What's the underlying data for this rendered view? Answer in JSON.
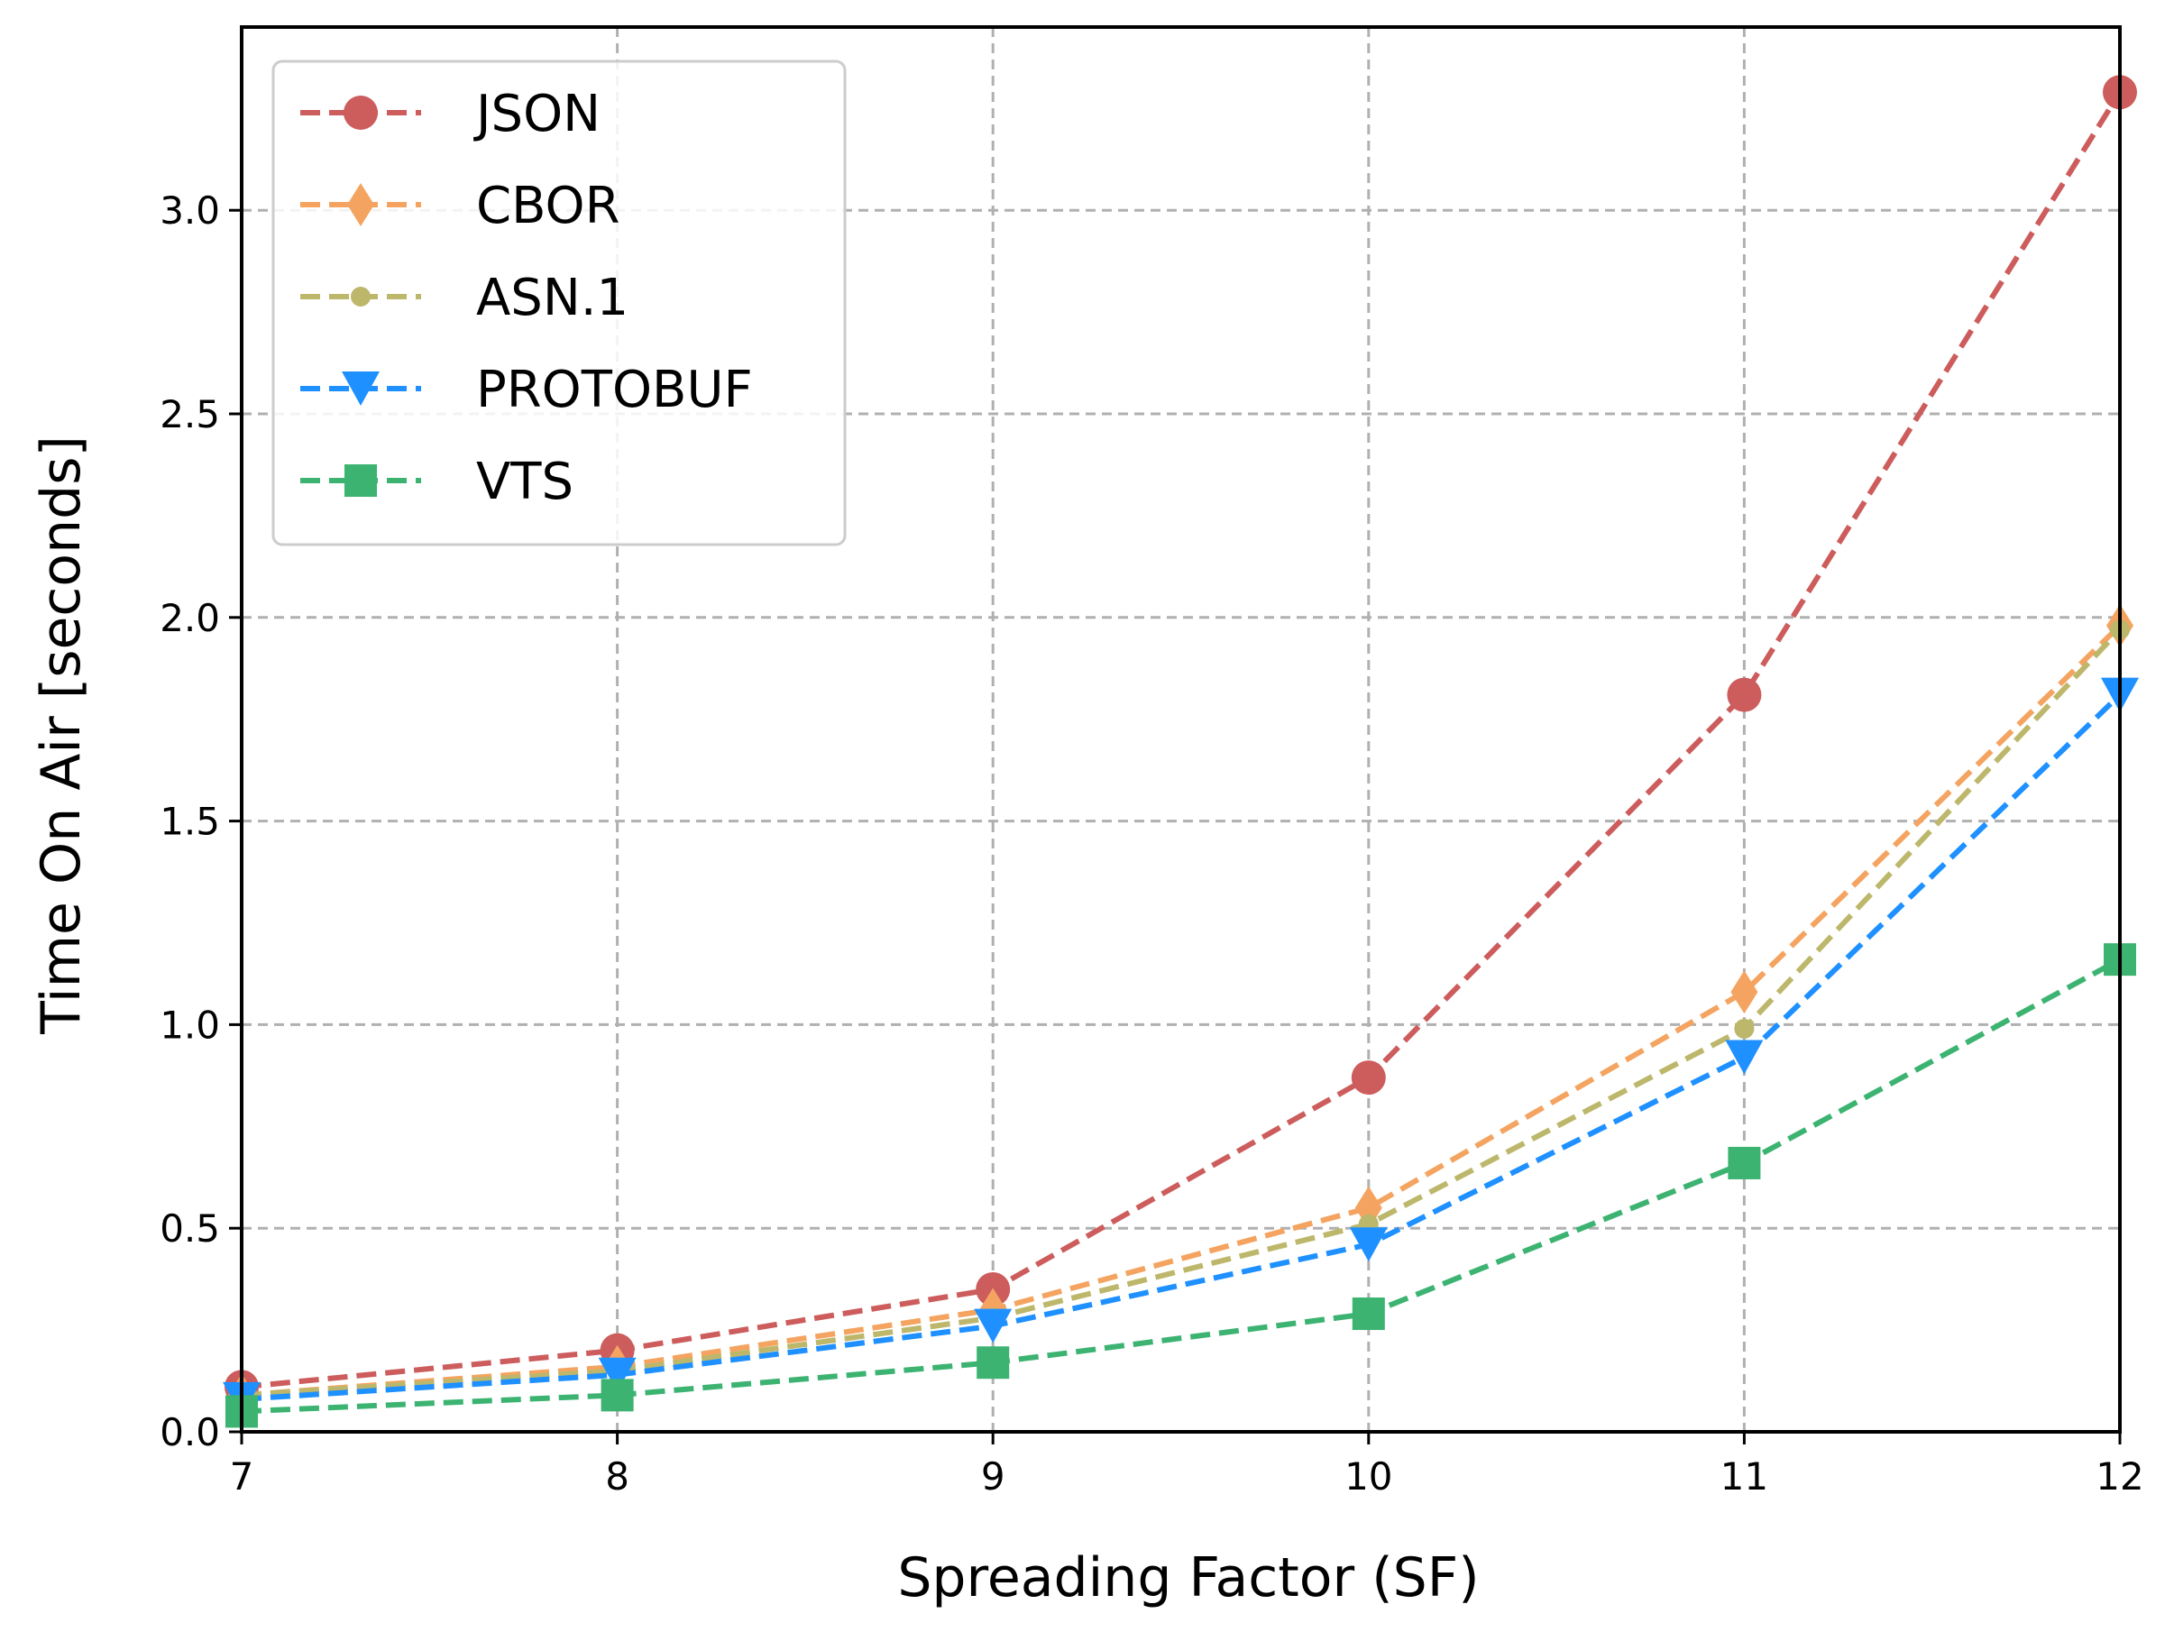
{
  "chart_data": {
    "type": "line",
    "title": "",
    "xlabel": "Spreading Factor (SF)",
    "ylabel": "Time On Air [seconds]",
    "x": [
      7,
      8,
      9,
      10,
      11,
      12
    ],
    "xlim": [
      7,
      12
    ],
    "ylim": [
      0,
      3.45
    ],
    "xticks": [
      "7",
      "8",
      "9",
      "10",
      "11",
      "12"
    ],
    "yticks": [
      "0.0",
      "0.5",
      "1.0",
      "1.5",
      "2.0",
      "2.5",
      "3.0"
    ],
    "grid": true,
    "legend_position": "top-left",
    "series": [
      {
        "name": "JSON",
        "color": "#cd5c5c",
        "marker": "circle",
        "line_style": "dashed",
        "values": [
          0.11,
          0.2,
          0.35,
          0.87,
          1.81,
          3.29
        ]
      },
      {
        "name": "CBOR",
        "color": "#f4a460",
        "marker": "diamond",
        "line_style": "dashed",
        "values": [
          0.09,
          0.16,
          0.3,
          0.55,
          1.08,
          1.98
        ]
      },
      {
        "name": "ASN.1",
        "color": "#bdb76b",
        "marker": "small-circle",
        "line_style": "dashed",
        "values": [
          0.09,
          0.15,
          0.28,
          0.51,
          0.99,
          1.97
        ]
      },
      {
        "name": "PROTOBUF",
        "color": "#1e90ff",
        "marker": "triangle-down",
        "line_style": "dashed",
        "values": [
          0.08,
          0.14,
          0.26,
          0.46,
          0.92,
          1.81
        ]
      },
      {
        "name": "VTS",
        "color": "#3cb371",
        "marker": "square",
        "line_style": "dashed",
        "values": [
          0.05,
          0.09,
          0.17,
          0.29,
          0.66,
          1.16
        ]
      }
    ]
  }
}
